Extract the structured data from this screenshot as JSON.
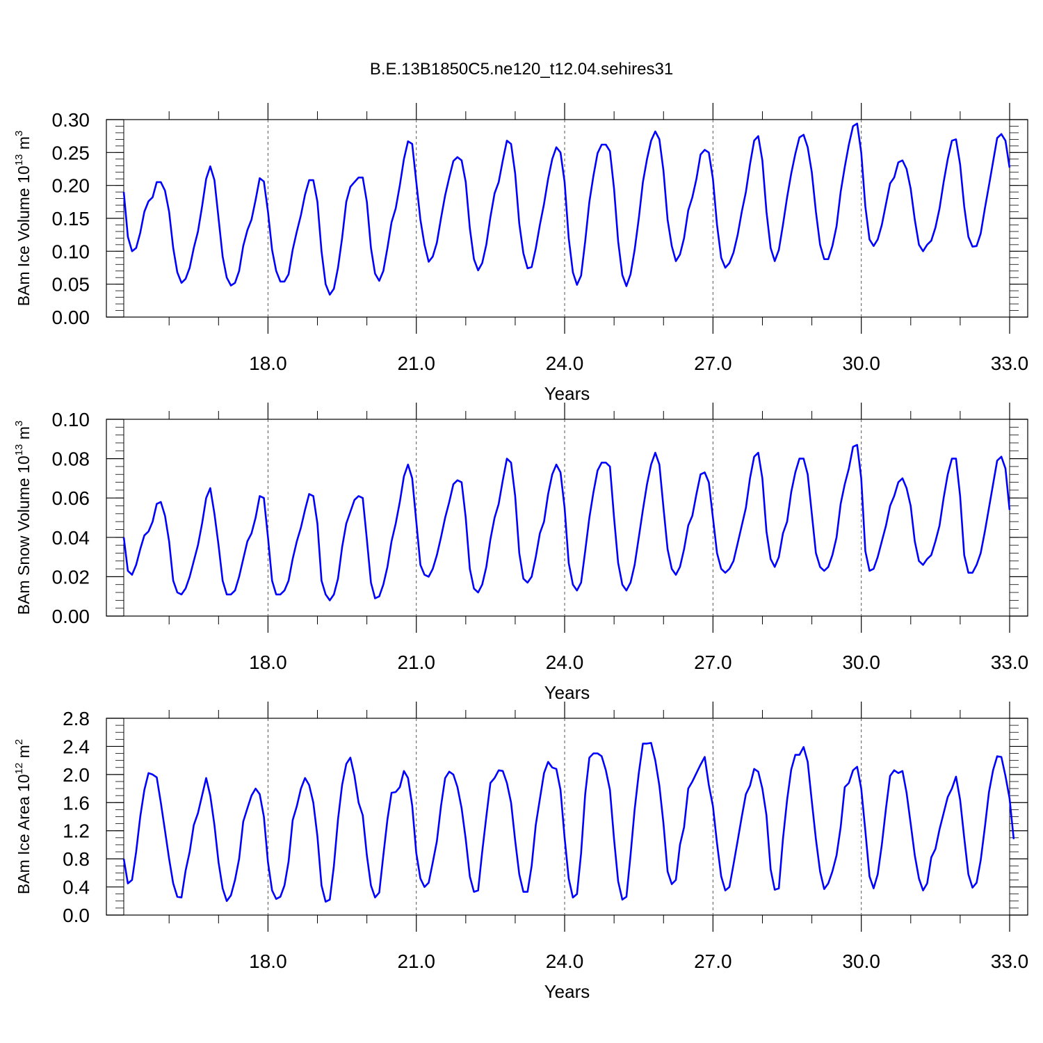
{
  "title": "B.E.13B1850C5.ne120_t12.04.sehires31",
  "line_color": "#0000ff",
  "chart_data": [
    {
      "type": "line",
      "ylabel_base": "BAm Ice Volume 10",
      "ylabel_exp": "13",
      "ylabel_unit": " m",
      "ylabel_unit_exp": "3",
      "xlabel": "Years",
      "xlim": [
        15.083,
        33.0
      ],
      "ylim": [
        0.0,
        0.3
      ],
      "yticks": [
        0.0,
        0.05,
        0.1,
        0.15,
        0.2,
        0.25,
        0.3
      ],
      "ytick_labels": [
        "0.00",
        "0.05",
        "0.10",
        "0.15",
        "0.20",
        "0.25",
        "0.30"
      ],
      "y_minor_step": 0.01,
      "xticks": [
        18.0,
        21.0,
        24.0,
        27.0,
        30.0,
        33.0
      ],
      "xtick_labels": [
        "18.0",
        "21.0",
        "24.0",
        "27.0",
        "30.0",
        "33.0"
      ],
      "grid": "dashed vertical lines at x ticks",
      "series": [
        {
          "x_start": 15.083,
          "x_step": 0.08333,
          "values": [
            0.19,
            0.122,
            0.1,
            0.105,
            0.128,
            0.16,
            0.176,
            0.182,
            0.205,
            0.205,
            0.192,
            0.16,
            0.105,
            0.068,
            0.052,
            0.058,
            0.075,
            0.105,
            0.13,
            0.168,
            0.21,
            0.229,
            0.208,
            0.15,
            0.092,
            0.06,
            0.048,
            0.052,
            0.07,
            0.108,
            0.132,
            0.148,
            0.178,
            0.211,
            0.206,
            0.16,
            0.102,
            0.07,
            0.054,
            0.054,
            0.065,
            0.102,
            0.13,
            0.155,
            0.186,
            0.208,
            0.208,
            0.175,
            0.1,
            0.05,
            0.034,
            0.043,
            0.075,
            0.12,
            0.175,
            0.198,
            0.205,
            0.212,
            0.212,
            0.175,
            0.105,
            0.066,
            0.055,
            0.07,
            0.105,
            0.144,
            0.165,
            0.2,
            0.24,
            0.267,
            0.263,
            0.205,
            0.148,
            0.11,
            0.084,
            0.092,
            0.113,
            0.15,
            0.185,
            0.212,
            0.237,
            0.243,
            0.238,
            0.205,
            0.135,
            0.088,
            0.071,
            0.082,
            0.11,
            0.152,
            0.188,
            0.205,
            0.238,
            0.268,
            0.263,
            0.218,
            0.142,
            0.097,
            0.074,
            0.076,
            0.104,
            0.14,
            0.172,
            0.21,
            0.24,
            0.258,
            0.25,
            0.205,
            0.12,
            0.068,
            0.049,
            0.063,
            0.115,
            0.175,
            0.215,
            0.249,
            0.262,
            0.262,
            0.252,
            0.195,
            0.115,
            0.064,
            0.047,
            0.065,
            0.102,
            0.15,
            0.205,
            0.24,
            0.268,
            0.282,
            0.27,
            0.222,
            0.148,
            0.108,
            0.085,
            0.095,
            0.12,
            0.162,
            0.182,
            0.21,
            0.247,
            0.254,
            0.25,
            0.21,
            0.14,
            0.09,
            0.075,
            0.082,
            0.098,
            0.125,
            0.16,
            0.19,
            0.232,
            0.268,
            0.275,
            0.238,
            0.16,
            0.105,
            0.085,
            0.102,
            0.14,
            0.182,
            0.218,
            0.248,
            0.273,
            0.277,
            0.258,
            0.22,
            0.16,
            0.11,
            0.088,
            0.088,
            0.108,
            0.138,
            0.19,
            0.228,
            0.262,
            0.29,
            0.294,
            0.25,
            0.168,
            0.118,
            0.108,
            0.118,
            0.14,
            0.172,
            0.203,
            0.212,
            0.235,
            0.238,
            0.225,
            0.195,
            0.148,
            0.11,
            0.1,
            0.11,
            0.116,
            0.136,
            0.165,
            0.205,
            0.24,
            0.268,
            0.27,
            0.232,
            0.168,
            0.122,
            0.107,
            0.108,
            0.127,
            0.165,
            0.2,
            0.236,
            0.272,
            0.278,
            0.268,
            0.227
          ]
        }
      ]
    },
    {
      "type": "line",
      "ylabel_base": "BAm Snow Volume 10",
      "ylabel_exp": "13",
      "ylabel_unit": " m",
      "ylabel_unit_exp": "3",
      "xlabel": "Years",
      "xlim": [
        15.083,
        33.0
      ],
      "ylim": [
        0.0,
        0.1
      ],
      "yticks": [
        0.0,
        0.02,
        0.04,
        0.06,
        0.08,
        0.1
      ],
      "ytick_labels": [
        "0.00",
        "0.02",
        "0.04",
        "0.06",
        "0.08",
        "0.10"
      ],
      "y_minor_step": 0.004,
      "xticks": [
        18.0,
        21.0,
        24.0,
        27.0,
        30.0,
        33.0
      ],
      "xtick_labels": [
        "18.0",
        "21.0",
        "24.0",
        "27.0",
        "30.0",
        "33.0"
      ],
      "grid": "dashed vertical lines at x ticks",
      "series": [
        {
          "x_start": 15.083,
          "x_step": 0.08333,
          "values": [
            0.04,
            0.023,
            0.021,
            0.026,
            0.034,
            0.041,
            0.043,
            0.048,
            0.057,
            0.058,
            0.051,
            0.038,
            0.018,
            0.012,
            0.011,
            0.014,
            0.02,
            0.028,
            0.036,
            0.047,
            0.06,
            0.065,
            0.052,
            0.036,
            0.018,
            0.011,
            0.011,
            0.013,
            0.02,
            0.029,
            0.038,
            0.042,
            0.05,
            0.061,
            0.06,
            0.04,
            0.018,
            0.011,
            0.011,
            0.013,
            0.018,
            0.029,
            0.038,
            0.045,
            0.054,
            0.062,
            0.061,
            0.047,
            0.018,
            0.011,
            0.008,
            0.011,
            0.019,
            0.035,
            0.047,
            0.053,
            0.059,
            0.061,
            0.06,
            0.039,
            0.017,
            0.009,
            0.01,
            0.016,
            0.025,
            0.038,
            0.047,
            0.058,
            0.071,
            0.077,
            0.07,
            0.048,
            0.026,
            0.021,
            0.02,
            0.024,
            0.031,
            0.04,
            0.05,
            0.058,
            0.067,
            0.069,
            0.068,
            0.05,
            0.024,
            0.014,
            0.012,
            0.016,
            0.025,
            0.039,
            0.05,
            0.057,
            0.069,
            0.08,
            0.078,
            0.061,
            0.032,
            0.019,
            0.017,
            0.02,
            0.03,
            0.042,
            0.048,
            0.062,
            0.072,
            0.077,
            0.073,
            0.055,
            0.027,
            0.016,
            0.013,
            0.017,
            0.033,
            0.05,
            0.063,
            0.074,
            0.078,
            0.078,
            0.076,
            0.05,
            0.027,
            0.016,
            0.013,
            0.017,
            0.026,
            0.04,
            0.054,
            0.067,
            0.077,
            0.083,
            0.077,
            0.055,
            0.034,
            0.024,
            0.021,
            0.025,
            0.034,
            0.046,
            0.051,
            0.062,
            0.072,
            0.073,
            0.068,
            0.05,
            0.032,
            0.024,
            0.022,
            0.024,
            0.028,
            0.037,
            0.046,
            0.055,
            0.07,
            0.081,
            0.083,
            0.07,
            0.043,
            0.029,
            0.025,
            0.03,
            0.042,
            0.048,
            0.063,
            0.073,
            0.08,
            0.08,
            0.072,
            0.052,
            0.032,
            0.025,
            0.023,
            0.025,
            0.031,
            0.04,
            0.057,
            0.067,
            0.075,
            0.086,
            0.087,
            0.07,
            0.033,
            0.023,
            0.024,
            0.03,
            0.038,
            0.046,
            0.056,
            0.061,
            0.068,
            0.07,
            0.065,
            0.056,
            0.038,
            0.028,
            0.026,
            0.029,
            0.031,
            0.038,
            0.046,
            0.06,
            0.072,
            0.08,
            0.08,
            0.061,
            0.031,
            0.022,
            0.022,
            0.026,
            0.032,
            0.043,
            0.055,
            0.067,
            0.079,
            0.081,
            0.075,
            0.054
          ]
        }
      ]
    },
    {
      "type": "line",
      "ylabel_base": "BAm Ice Area 10",
      "ylabel_exp": "12",
      "ylabel_unit": " m",
      "ylabel_unit_exp": "2",
      "xlabel": "Years",
      "xlim": [
        15.083,
        33.0
      ],
      "ylim": [
        0.0,
        2.8
      ],
      "yticks": [
        0.0,
        0.4,
        0.8,
        1.2,
        1.6,
        2.0,
        2.4,
        2.8
      ],
      "ytick_labels": [
        "0.0",
        "0.4",
        "0.8",
        "1.2",
        "1.6",
        "2.0",
        "2.4",
        "2.8"
      ],
      "y_minor_step": 0.1,
      "xticks": [
        18.0,
        21.0,
        24.0,
        27.0,
        30.0,
        33.0
      ],
      "xtick_labels": [
        "18.0",
        "21.0",
        "24.0",
        "27.0",
        "30.0",
        "33.0"
      ],
      "grid": "dashed vertical lines at x ticks",
      "series": [
        {
          "x_start": 15.083,
          "x_step": 0.08333,
          "values": [
            0.8,
            0.45,
            0.5,
            0.9,
            1.4,
            1.78,
            2.02,
            2.0,
            1.96,
            1.6,
            1.2,
            0.8,
            0.45,
            0.26,
            0.25,
            0.63,
            0.9,
            1.28,
            1.45,
            1.7,
            1.95,
            1.7,
            1.28,
            0.75,
            0.38,
            0.2,
            0.28,
            0.5,
            0.8,
            1.33,
            1.52,
            1.7,
            1.8,
            1.72,
            1.4,
            0.75,
            0.35,
            0.23,
            0.26,
            0.42,
            0.76,
            1.35,
            1.55,
            1.8,
            1.95,
            1.85,
            1.6,
            1.12,
            0.42,
            0.19,
            0.22,
            0.7,
            1.36,
            1.85,
            2.15,
            2.24,
            1.98,
            1.6,
            1.42,
            0.85,
            0.42,
            0.25,
            0.32,
            0.85,
            1.36,
            1.74,
            1.75,
            1.82,
            2.05,
            1.95,
            1.56,
            0.88,
            0.52,
            0.4,
            0.46,
            0.75,
            1.05,
            1.55,
            1.95,
            2.04,
            2.0,
            1.82,
            1.52,
            1.08,
            0.55,
            0.33,
            0.35,
            0.9,
            1.4,
            1.88,
            1.95,
            2.06,
            2.05,
            1.88,
            1.6,
            1.06,
            0.58,
            0.33,
            0.33,
            0.7,
            1.28,
            1.65,
            2.02,
            2.18,
            2.1,
            2.08,
            1.78,
            1.1,
            0.52,
            0.25,
            0.3,
            0.88,
            1.72,
            2.24,
            2.3,
            2.3,
            2.26,
            2.06,
            1.78,
            1.08,
            0.48,
            0.22,
            0.26,
            0.85,
            1.5,
            2.02,
            2.44,
            2.44,
            2.45,
            2.2,
            1.84,
            1.3,
            0.62,
            0.44,
            0.5,
            1.0,
            1.25,
            1.8,
            1.9,
            2.02,
            2.14,
            2.25,
            1.85,
            1.55,
            1.02,
            0.55,
            0.35,
            0.4,
            0.72,
            1.06,
            1.4,
            1.72,
            1.84,
            2.08,
            2.04,
            1.8,
            1.42,
            0.65,
            0.36,
            0.38,
            1.08,
            1.64,
            2.07,
            2.28,
            2.28,
            2.39,
            2.18,
            1.62,
            1.08,
            0.62,
            0.37,
            0.45,
            0.62,
            0.85,
            1.25,
            1.82,
            1.88,
            2.06,
            2.11,
            1.8,
            1.2,
            0.55,
            0.38,
            0.58,
            1.0,
            1.52,
            1.98,
            2.06,
            2.02,
            2.05,
            1.74,
            1.3,
            0.85,
            0.52,
            0.35,
            0.45,
            0.82,
            0.94,
            1.22,
            1.45,
            1.68,
            1.8,
            1.97,
            1.64,
            1.1,
            0.58,
            0.39,
            0.46,
            0.78,
            1.25,
            1.75,
            2.06,
            2.26,
            2.25,
            1.98,
            1.66,
            1.08
          ]
        }
      ]
    }
  ]
}
